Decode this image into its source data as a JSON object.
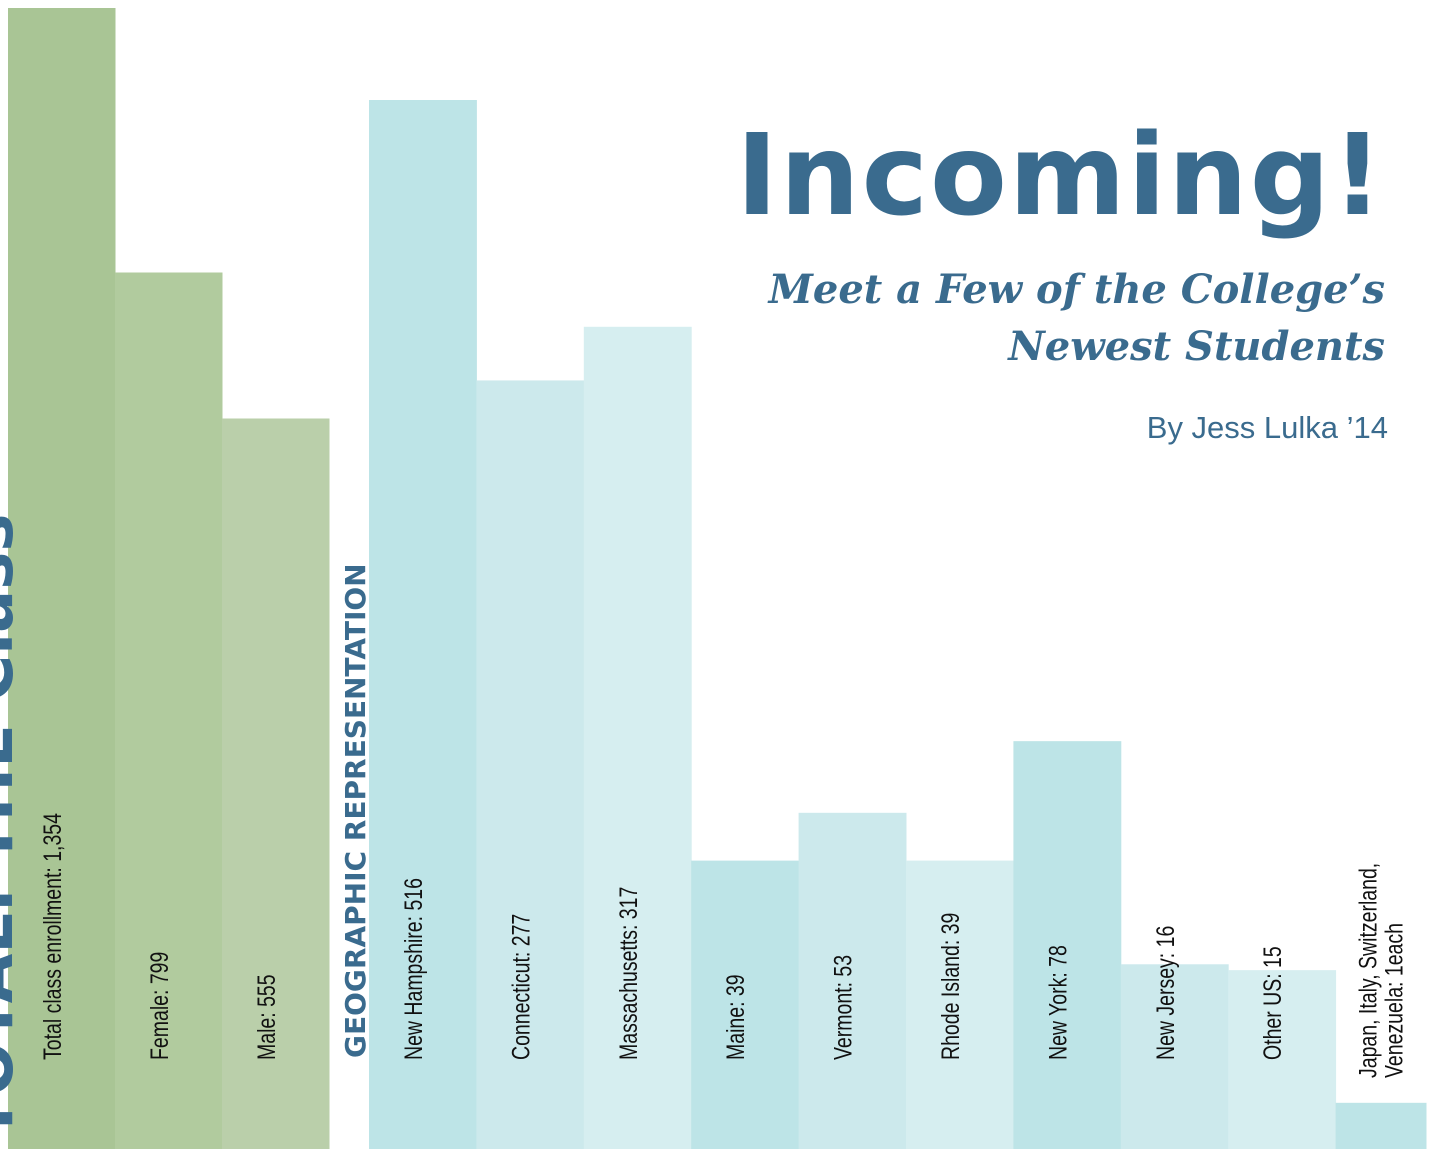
{
  "heading": {
    "title": "Incoming!",
    "subtitle_lines": [
      "Meet a Few of the College’s",
      "Newest Students"
    ],
    "byline": "By Jess Lulka ’14"
  },
  "chart_data": [
    {
      "type": "bar",
      "title": "TOTAL: THE Class",
      "scale": "sqrt",
      "colors": [
        "#a9c595",
        "#b1cb9e",
        "#bacfaa"
      ],
      "values": [
        1354,
        799,
        555
      ],
      "value_labels": [
        "Total class enrollment: 1,354",
        "Female: 799",
        "Male: 555"
      ]
    },
    {
      "type": "bar",
      "title": "GEOGRAPHIC REPRESENTATION",
      "scale": "sqrt",
      "colors": [
        "#bde4e7",
        "#cce9ec",
        "#d6eef0"
      ],
      "values": [
        516,
        277,
        317,
        39,
        53,
        39,
        78,
        16,
        15,
        1
      ],
      "value_labels": [
        "New Hampshire: 516",
        "Connecticut: 277",
        "Massachusetts: 317",
        "Maine: 39",
        "Vermont: 53",
        "Rhode Island: 39",
        "New York: 78",
        "New Jersey: 16",
        "Other US: 15",
        "Japan, Italy, Switzerland, Venezuela: 1each"
      ]
    }
  ]
}
